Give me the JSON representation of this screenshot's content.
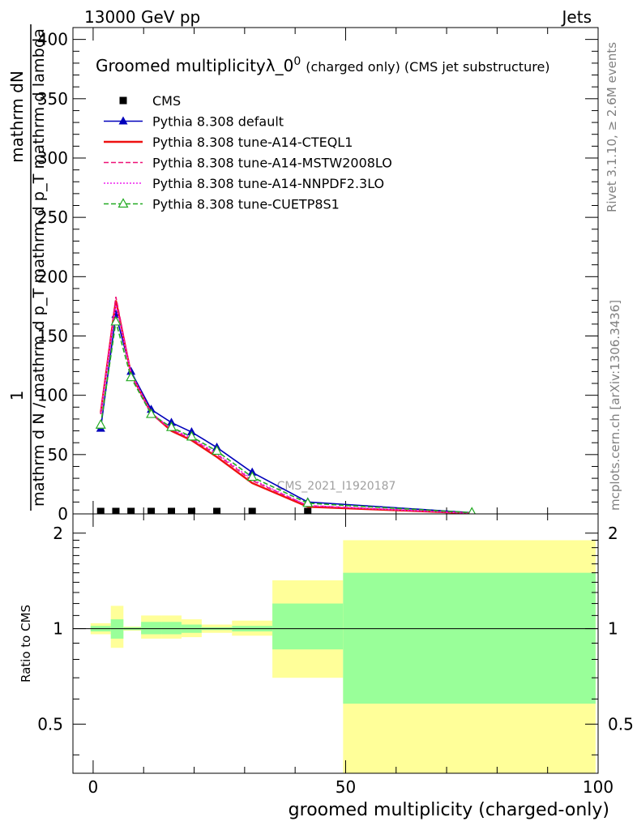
{
  "header": {
    "left": "13000 GeV pp",
    "right": "Jets"
  },
  "side_text": {
    "rivet": "Rivet 3.1.10, ≥ 2.6M events",
    "mcplots": "mcplots.cern.ch [arXiv:1306.3436]"
  },
  "chart_data": [
    {
      "type": "line",
      "title": "Groomed multiplicityλ_0",
      "title_sup": "0",
      "title_suffix": "(charged only) (CMS jet substructure)",
      "watermark": "CMS_2021_I1920187",
      "ylabel_num": "mathrm dN",
      "ylabel_one": "1",
      "ylabel_den": "mathrm d N / mathrm d p_T mathrm d p_T mathrm d lambda",
      "ylim": [
        0,
        410
      ],
      "xlim": [
        -4,
        100
      ],
      "yticks": [
        0,
        50,
        100,
        150,
        200,
        250,
        300,
        350,
        400
      ],
      "legend_position": "top-left",
      "series": [
        {
          "name": "CMS",
          "color": "#000000",
          "marker": "square",
          "x": [
            1.5,
            4.5,
            7.5,
            11.5,
            15.5,
            19.5,
            24.5,
            31.5,
            42.5
          ],
          "y": [
            0,
            0,
            0,
            0,
            0,
            0,
            0,
            0,
            0
          ]
        },
        {
          "name": "Pythia 8.308 default",
          "color": "#0000bb",
          "marker": "triangle",
          "x": [
            1.5,
            4.5,
            7.5,
            11.5,
            15.5,
            19.5,
            24.5,
            31.5,
            42.5,
            75
          ],
          "y": [
            72,
            168,
            120,
            88,
            77,
            69,
            56,
            35,
            10,
            1
          ]
        },
        {
          "name": "Pythia 8.308 tune-A14-CTEQL1",
          "color": "#ee1111",
          "marker": "none",
          "x": [
            1.5,
            4.5,
            7.5,
            11.5,
            15.5,
            19.5,
            24.5,
            31.5,
            42.5,
            75
          ],
          "y": [
            85,
            180,
            118,
            85,
            70,
            62,
            48,
            26,
            6,
            0.5
          ]
        },
        {
          "name": "Pythia 8.308 tune-A14-MSTW2008LO",
          "color": "#ee1177",
          "marker": "none",
          "x": [
            1.5,
            4.5,
            7.5,
            11.5,
            15.5,
            19.5,
            24.5,
            31.5,
            42.5,
            75
          ],
          "y": [
            84,
            183,
            118,
            84,
            71,
            63,
            50,
            28,
            7,
            0.5
          ]
        },
        {
          "name": "Pythia 8.308 tune-A14-NNPDF2.3LO",
          "color": "#ee22ee",
          "marker": "none",
          "x": [
            1.5,
            4.5,
            7.5,
            11.5,
            15.5,
            19.5,
            24.5,
            31.5,
            42.5,
            75
          ],
          "y": [
            85,
            176,
            119,
            85,
            72,
            64,
            51,
            29,
            7,
            0.5
          ]
        },
        {
          "name": "Pythia 8.308 tune-CUETP8S1",
          "color": "#22aa22",
          "marker": "triangle-open",
          "x": [
            1.5,
            4.5,
            7.5,
            11.5,
            15.5,
            19.5,
            24.5,
            31.5,
            42.5,
            75
          ],
          "y": [
            75,
            162,
            115,
            84,
            73,
            65,
            53,
            31,
            9,
            1
          ]
        }
      ]
    },
    {
      "type": "area",
      "ylabel": "Ratio to CMS",
      "xlabel": "groomed multiplicity (charged-only)",
      "xlim": [
        -4,
        100
      ],
      "ylim": [
        0.35,
        2.3
      ],
      "xticks": [
        0,
        50,
        100
      ],
      "yticks": [
        0.5,
        1,
        2
      ],
      "reference_line": 1,
      "bands": [
        {
          "x0": -0.5,
          "x1": 3.5,
          "inner": [
            0.98,
            1.02
          ],
          "outer": [
            0.96,
            1.04
          ]
        },
        {
          "x0": 3.5,
          "x1": 6,
          "inner": [
            0.93,
            1.07
          ],
          "outer": [
            0.87,
            1.18
          ]
        },
        {
          "x0": 6,
          "x1": 9.5,
          "inner": [
            0.99,
            1.01
          ],
          "outer": [
            0.985,
            1.015
          ]
        },
        {
          "x0": 9.5,
          "x1": 13.5,
          "inner": [
            0.96,
            1.05
          ],
          "outer": [
            0.93,
            1.1
          ]
        },
        {
          "x0": 13.5,
          "x1": 17.5,
          "inner": [
            0.96,
            1.05
          ],
          "outer": [
            0.93,
            1.1
          ]
        },
        {
          "x0": 17.5,
          "x1": 21.5,
          "inner": [
            0.97,
            1.03
          ],
          "outer": [
            0.94,
            1.07
          ]
        },
        {
          "x0": 21.5,
          "x1": 27.5,
          "inner": [
            0.99,
            1.01
          ],
          "outer": [
            0.97,
            1.03
          ]
        },
        {
          "x0": 27.5,
          "x1": 35.5,
          "inner": [
            0.98,
            1.02
          ],
          "outer": [
            0.95,
            1.06
          ]
        },
        {
          "x0": 35.5,
          "x1": 49.5,
          "inner": [
            0.86,
            1.2
          ],
          "outer": [
            0.7,
            1.42
          ]
        },
        {
          "x0": 49.5,
          "x1": 99.5,
          "inner": [
            0.58,
            1.5
          ],
          "outer": [
            0.35,
            1.9
          ]
        }
      ]
    }
  ]
}
